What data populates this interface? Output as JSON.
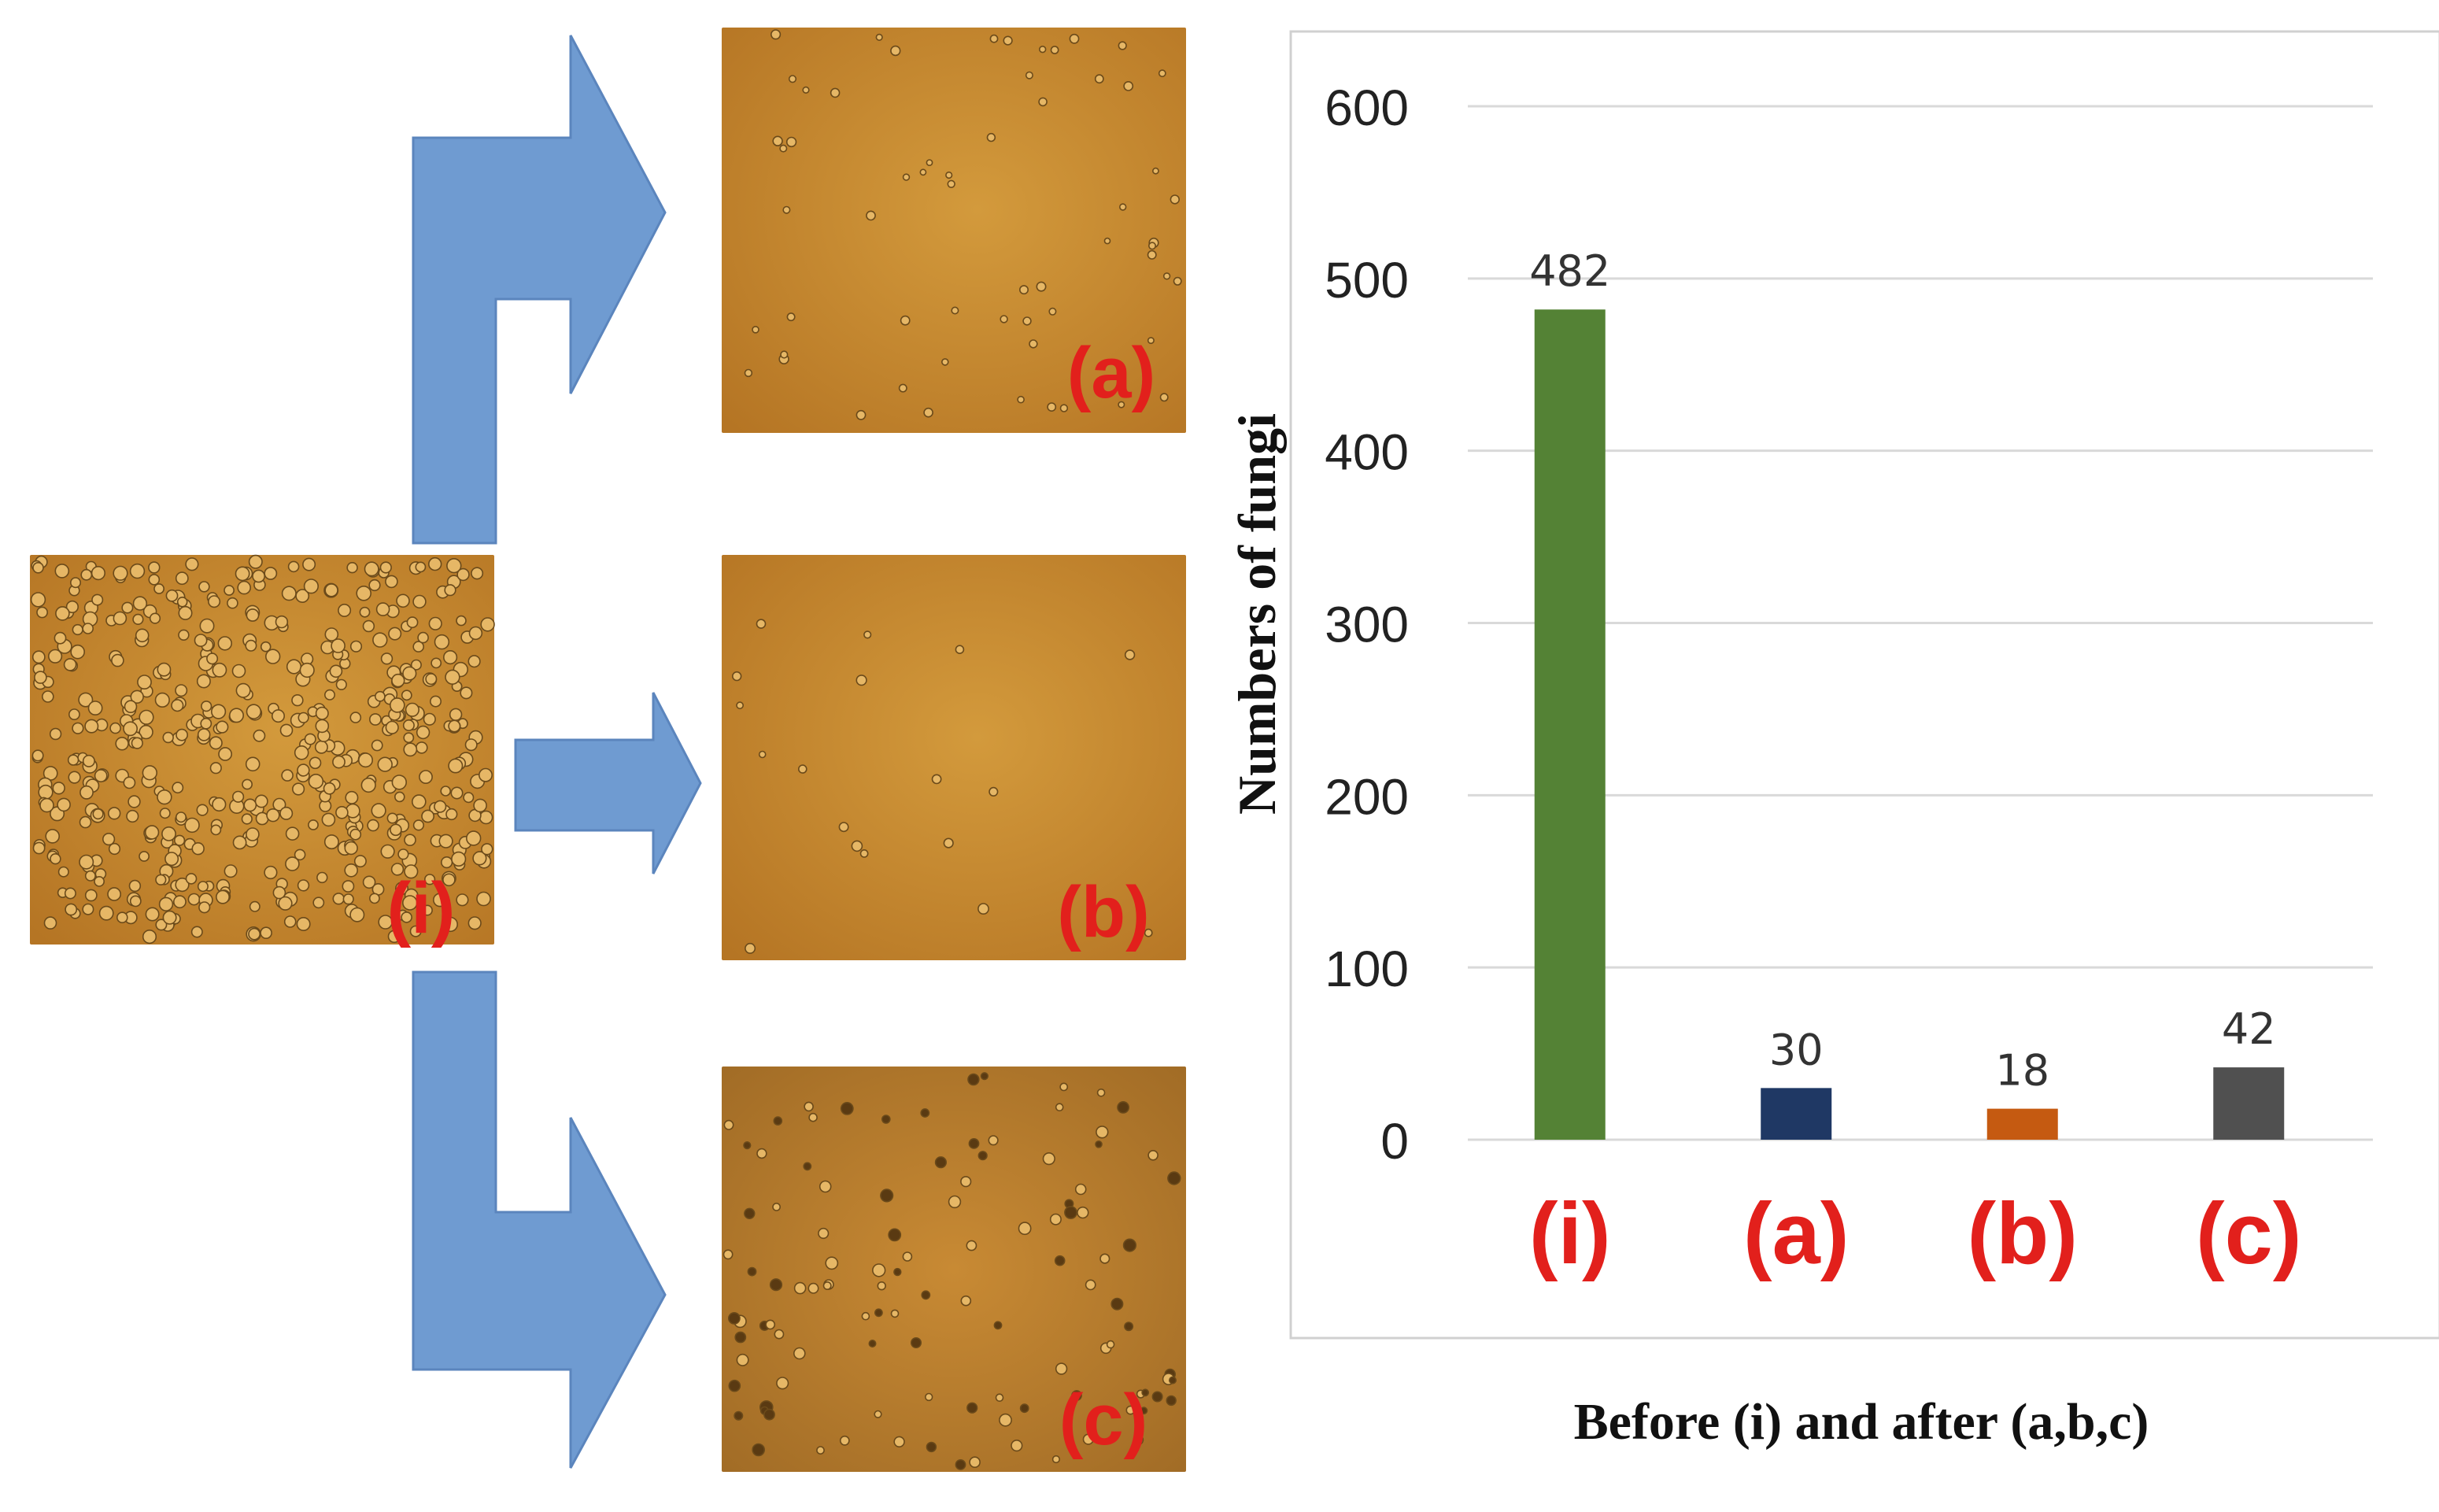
{
  "colors": {
    "arrow": "#6f9bd1",
    "arrow_edge": "#5b85bd",
    "micrograph_bg": "#c8892c",
    "micrograph_bg_dark": "#b47422",
    "cell": "#e6b766",
    "cell_edge": "#6b4a1a",
    "panel_label": "#e2201c",
    "grid": "#d9d9d9",
    "frame": "#d0d0d0",
    "text": "#222222"
  },
  "micrographs": [
    {
      "id": "i",
      "label": "(i)",
      "density": "high"
    },
    {
      "id": "a",
      "label": "(a)",
      "density": "low"
    },
    {
      "id": "b",
      "label": "(b)",
      "density": "very-low"
    },
    {
      "id": "c",
      "label": "(c)",
      "density": "medium-dark"
    }
  ],
  "chart_data": {
    "type": "bar",
    "categories": [
      "(i)",
      "(a)",
      "(b)",
      "(c)"
    ],
    "values": [
      482,
      30,
      18,
      42
    ],
    "data_labels": [
      "482",
      "30",
      "18",
      "42"
    ],
    "bar_colors": [
      "#548235",
      "#1f3864",
      "#c55a11",
      "#505050"
    ],
    "ylabel": "Numbers of fungi",
    "xlabel": "Before (i) and after (a,b,c)",
    "ylim": [
      0,
      600
    ],
    "yticks": [
      0,
      100,
      200,
      300,
      400,
      500,
      600
    ],
    "grid": true,
    "legend": "none"
  }
}
